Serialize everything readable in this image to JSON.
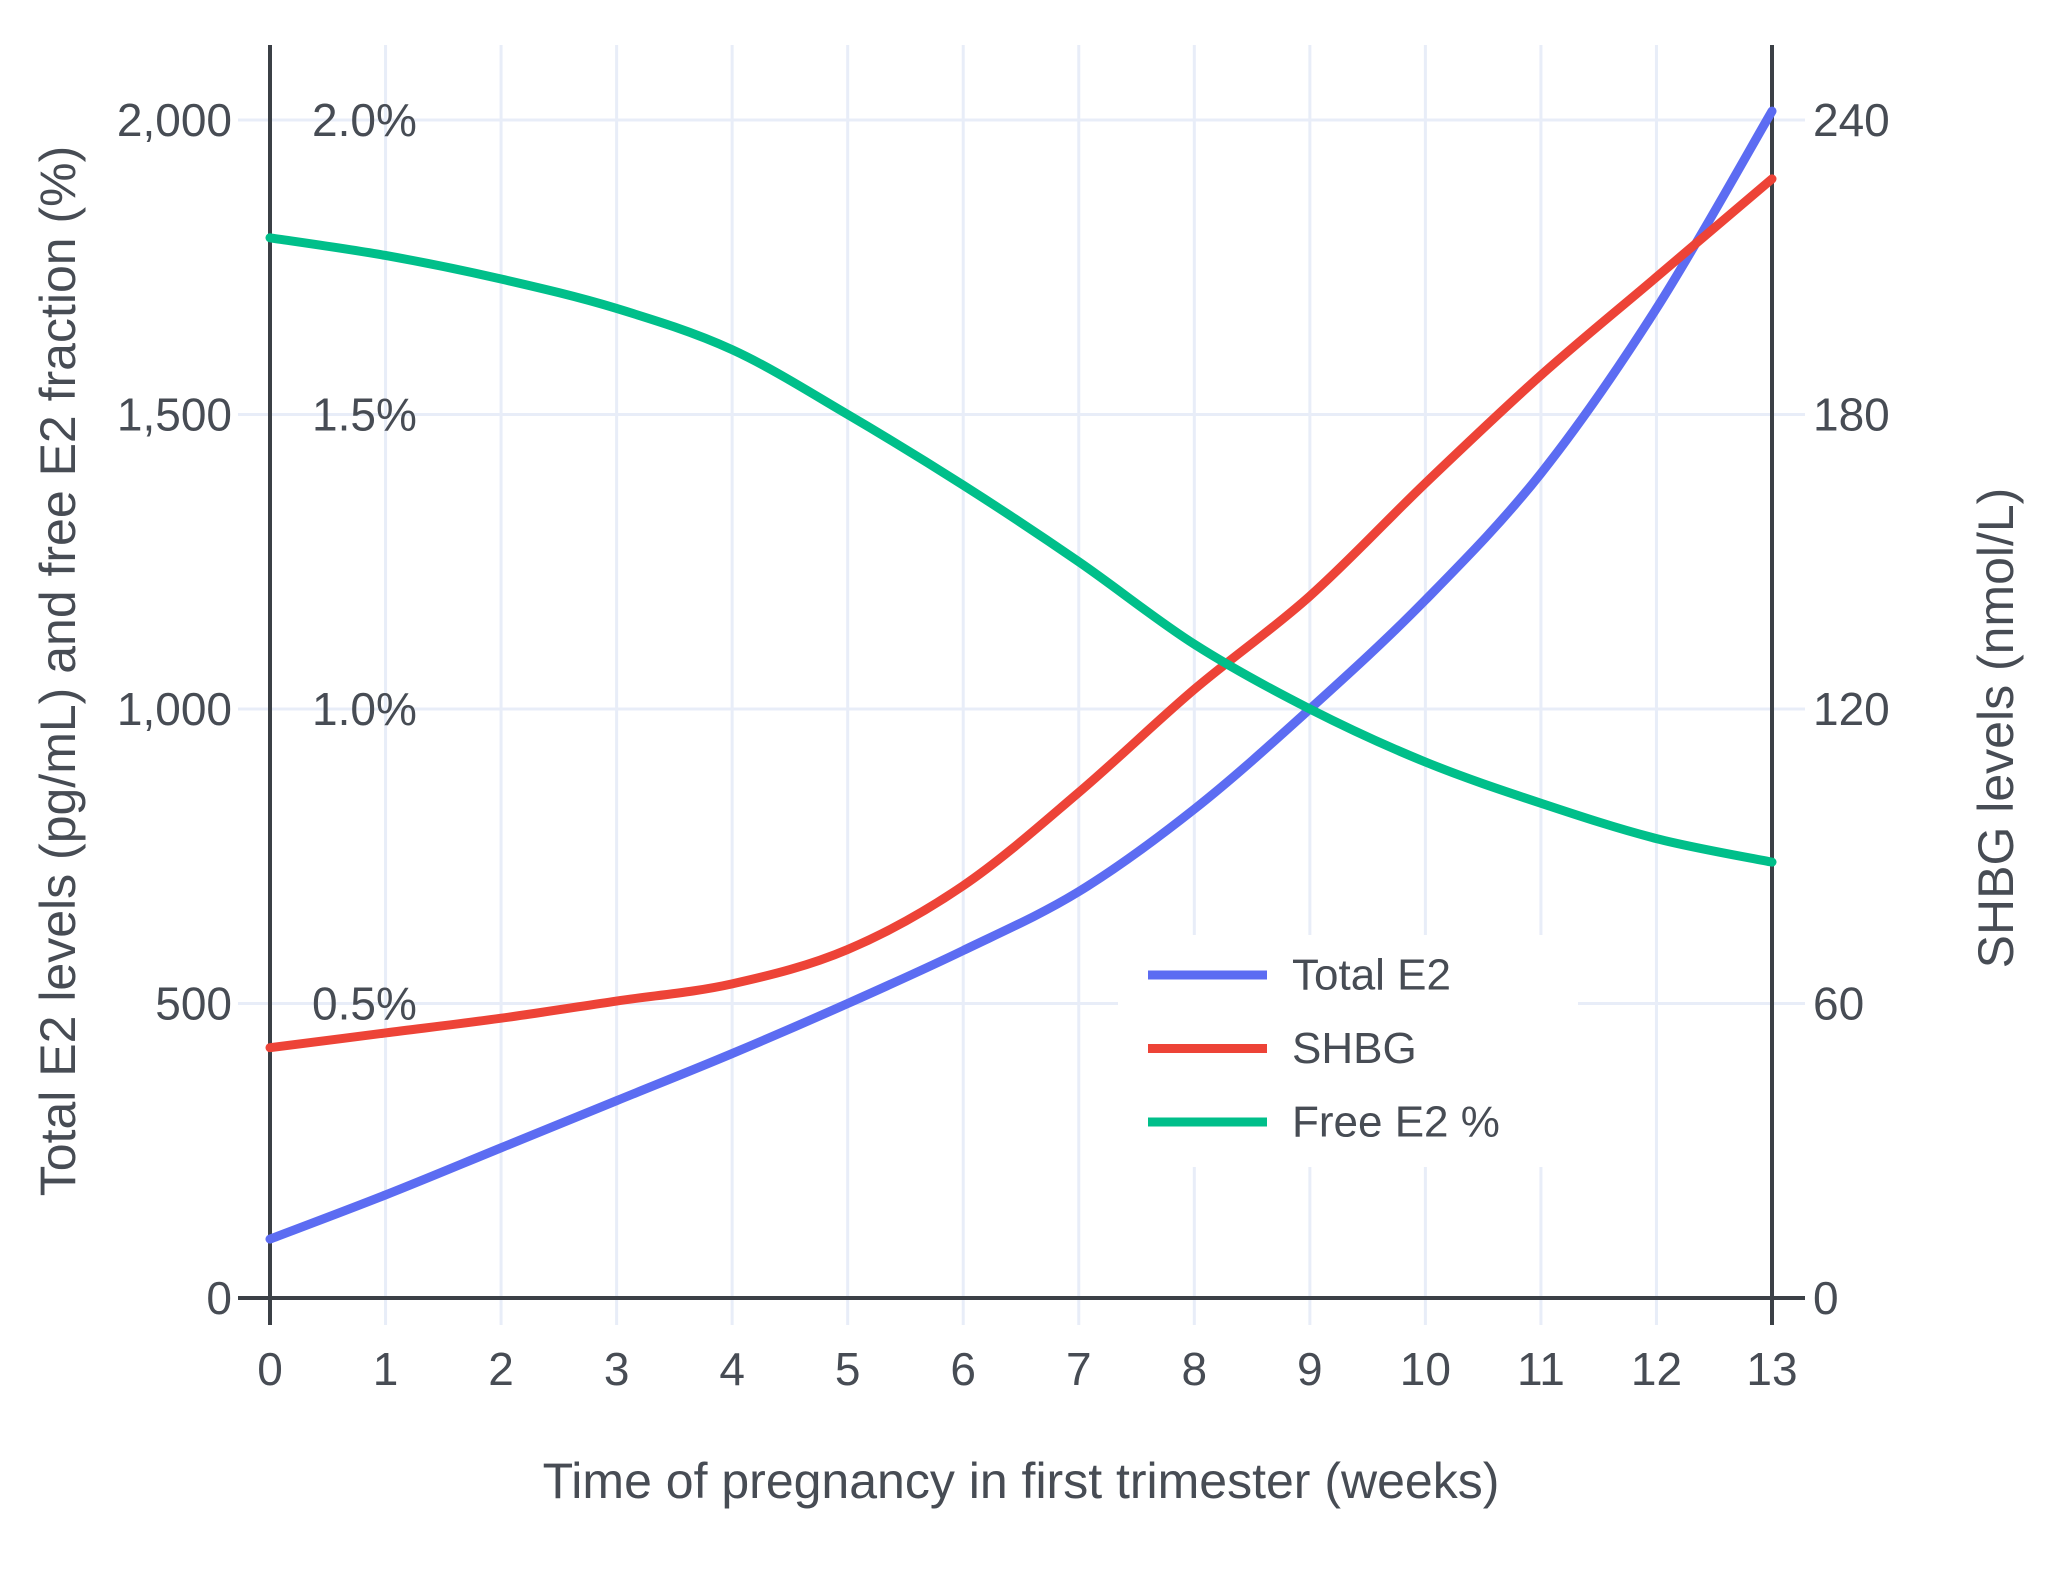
{
  "chart_data": {
    "type": "line",
    "title": "",
    "xlabel": "Time of pregnancy in first trimester (weeks)",
    "ylabel_left": "Total E2 levels (pg/mL) and free E2 fraction (%)",
    "ylabel_right": "SHBG levels (nmol/L)",
    "x": [
      0,
      1,
      2,
      3,
      4,
      5,
      6,
      7,
      8,
      9,
      10,
      11,
      12,
      13
    ],
    "x_tick_labels": [
      "0",
      "1",
      "2",
      "3",
      "4",
      "5",
      "6",
      "7",
      "8",
      "9",
      "10",
      "11",
      "12",
      "13"
    ],
    "left_axis": {
      "tick_labels": [
        "0",
        "500",
        "1,000",
        "1,500",
        "2,000"
      ],
      "tick_values": [
        0,
        500,
        1000,
        1500,
        2000
      ],
      "range": [
        0,
        2128
      ]
    },
    "percent_labels": [
      {
        "text": "0.5%",
        "value": 500
      },
      {
        "text": "1.0%",
        "value": 1000
      },
      {
        "text": "1.5%",
        "value": 1500
      },
      {
        "text": "2.0%",
        "value": 2000
      }
    ],
    "right_axis": {
      "tick_labels": [
        "0",
        "60",
        "120",
        "180",
        "240"
      ],
      "tick_values": [
        0,
        60,
        120,
        180,
        240
      ],
      "range": [
        0,
        255
      ]
    },
    "grid": true,
    "legend_position": "inside-right-middle",
    "series": [
      {
        "name": "Total E2",
        "axis": "left",
        "unit": "pg/mL",
        "color": "#5c6cf2",
        "values": [
          100,
          175,
          255,
          335,
          415,
          500,
          590,
          690,
          830,
          1000,
          1185,
          1400,
          1680,
          2015
        ]
      },
      {
        "name": "SHBG",
        "axis": "right",
        "unit": "nmol/L",
        "color": "#ed4337",
        "values": [
          51,
          54,
          57,
          60.5,
          64,
          71,
          84,
          103,
          124,
          143,
          166,
          188,
          208,
          228
        ]
      },
      {
        "name": "Free E2 %",
        "axis": "left_pct",
        "unit": "%",
        "color": "#00bf8a",
        "values": [
          1.8,
          1.77,
          1.73,
          1.68,
          1.61,
          1.5,
          1.38,
          1.25,
          1.11,
          1.0,
          0.91,
          0.84,
          0.78,
          0.74
        ]
      }
    ]
  },
  "colors": {
    "background": "#ffffff",
    "gridline": "#e8edf8",
    "axis_line": "#3b4046",
    "text": "#474c54",
    "legend_background": "#ffffff"
  }
}
